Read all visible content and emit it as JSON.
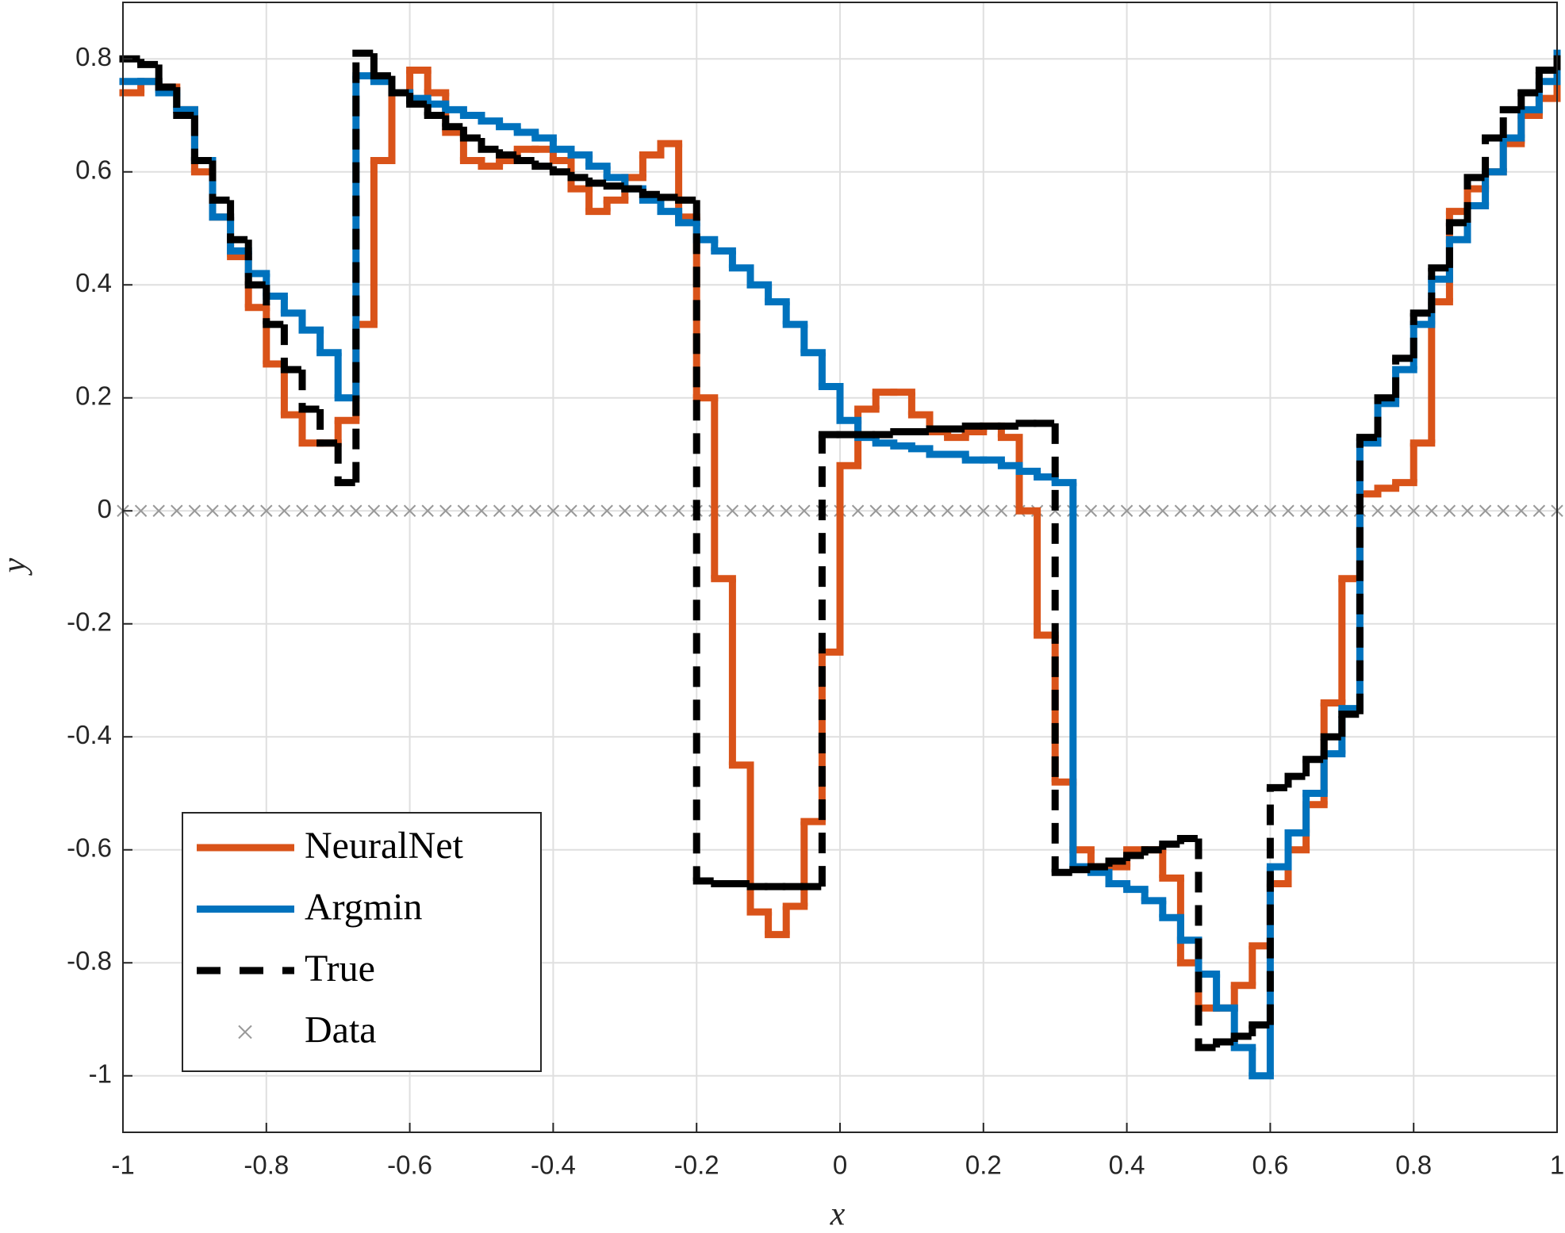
{
  "chart_data": {
    "type": "line",
    "drawstyle": "steps-post",
    "xlabel": "x",
    "ylabel": "y",
    "x": [
      -1,
      -0.975,
      -0.95,
      -0.925,
      -0.9,
      -0.875,
      -0.85,
      -0.825,
      -0.8,
      -0.775,
      -0.75,
      -0.725,
      -0.7,
      -0.675,
      -0.65,
      -0.625,
      -0.6,
      -0.575,
      -0.55,
      -0.525,
      -0.5,
      -0.475,
      -0.45,
      -0.425,
      -0.4,
      -0.375,
      -0.35,
      -0.325,
      -0.3,
      -0.275,
      -0.25,
      -0.225,
      -0.2,
      -0.175,
      -0.15,
      -0.125,
      -0.1,
      -0.075,
      -0.05,
      -0.025,
      0,
      0.025,
      0.05,
      0.075,
      0.1,
      0.125,
      0.15,
      0.175,
      0.2,
      0.225,
      0.25,
      0.275,
      0.3,
      0.325,
      0.35,
      0.375,
      0.4,
      0.425,
      0.45,
      0.475,
      0.5,
      0.525,
      0.55,
      0.575,
      0.6,
      0.625,
      0.65,
      0.675,
      0.7,
      0.725,
      0.75,
      0.775,
      0.8,
      0.825,
      0.85,
      0.875,
      0.9,
      0.925,
      0.95,
      0.975,
      1
    ],
    "series": [
      {
        "name": "NeuralNet",
        "color": "#d95319",
        "style": "solid",
        "values": [
          0.74,
          0.76,
          0.75,
          0.71,
          0.6,
          0.52,
          0.45,
          0.36,
          0.26,
          0.17,
          0.12,
          0.12,
          0.16,
          0.33,
          0.62,
          0.74,
          0.78,
          0.74,
          0.67,
          0.62,
          0.61,
          0.62,
          0.64,
          0.64,
          0.62,
          0.57,
          0.53,
          0.55,
          0.59,
          0.63,
          0.65,
          0.52,
          0.2,
          -0.12,
          -0.45,
          -0.71,
          -0.75,
          -0.7,
          -0.55,
          -0.25,
          0.08,
          0.18,
          0.21,
          0.21,
          0.17,
          0.14,
          0.13,
          0.14,
          0.15,
          0.13,
          0.0,
          -0.22,
          -0.48,
          -0.6,
          -0.63,
          -0.63,
          -0.6,
          -0.6,
          -0.65,
          -0.8,
          -0.88,
          -0.88,
          -0.84,
          -0.77,
          -0.66,
          -0.6,
          -0.52,
          -0.34,
          -0.12,
          0.03,
          0.04,
          0.05,
          0.12,
          0.37,
          0.53,
          0.57,
          0.6,
          0.65,
          0.7,
          0.73,
          0.75
        ]
      },
      {
        "name": "Argmin",
        "color": "#0072bd",
        "style": "solid",
        "values": [
          0.76,
          0.76,
          0.74,
          0.71,
          0.62,
          0.52,
          0.46,
          0.42,
          0.38,
          0.35,
          0.32,
          0.28,
          0.2,
          0.77,
          0.76,
          0.74,
          0.73,
          0.72,
          0.71,
          0.7,
          0.69,
          0.68,
          0.67,
          0.66,
          0.64,
          0.63,
          0.61,
          0.59,
          0.57,
          0.55,
          0.53,
          0.51,
          0.48,
          0.46,
          0.43,
          0.4,
          0.37,
          0.33,
          0.28,
          0.22,
          0.16,
          0.13,
          0.12,
          0.115,
          0.11,
          0.1,
          0.1,
          0.09,
          0.09,
          0.08,
          0.07,
          0.06,
          0.05,
          -0.63,
          -0.64,
          -0.66,
          -0.67,
          -0.69,
          -0.72,
          -0.76,
          -0.82,
          -0.88,
          -0.95,
          -1.0,
          -0.63,
          -0.57,
          -0.5,
          -0.43,
          -0.35,
          0.12,
          0.19,
          0.25,
          0.33,
          0.41,
          0.48,
          0.54,
          0.6,
          0.66,
          0.71,
          0.76,
          0.81
        ]
      },
      {
        "name": "True",
        "color": "#000000",
        "style": "dashed",
        "values": [
          0.8,
          0.79,
          0.75,
          0.7,
          0.62,
          0.55,
          0.48,
          0.4,
          0.33,
          0.25,
          0.18,
          0.12,
          0.05,
          0.81,
          0.77,
          0.74,
          0.72,
          0.7,
          0.68,
          0.66,
          0.64,
          0.63,
          0.62,
          0.61,
          0.6,
          0.59,
          0.58,
          0.575,
          0.57,
          0.56,
          0.555,
          0.55,
          -0.655,
          -0.66,
          -0.66,
          -0.665,
          -0.665,
          -0.665,
          -0.665,
          0.135,
          0.135,
          0.135,
          0.135,
          0.14,
          0.14,
          0.145,
          0.145,
          0.15,
          0.15,
          0.15,
          0.155,
          0.155,
          -0.64,
          -0.635,
          -0.63,
          -0.62,
          -0.61,
          -0.6,
          -0.59,
          -0.58,
          -0.95,
          -0.94,
          -0.93,
          -0.91,
          -0.49,
          -0.47,
          -0.44,
          -0.4,
          -0.36,
          0.13,
          0.2,
          0.27,
          0.35,
          0.43,
          0.51,
          0.59,
          0.66,
          0.71,
          0.74,
          0.78,
          0.8
        ]
      },
      {
        "name": "Data",
        "color": "#999999",
        "style": "marker-x",
        "values": [
          0,
          0,
          0,
          0,
          0,
          0,
          0,
          0,
          0,
          0,
          0,
          0,
          0,
          0,
          0,
          0,
          0,
          0,
          0,
          0,
          0,
          0,
          0,
          0,
          0,
          0,
          0,
          0,
          0,
          0,
          0,
          0,
          0,
          0,
          0,
          0,
          0,
          0,
          0,
          0,
          0,
          0,
          0,
          0,
          0,
          0,
          0,
          0,
          0,
          0,
          0,
          0,
          0,
          0,
          0,
          0,
          0,
          0,
          0,
          0,
          0,
          0,
          0,
          0,
          0,
          0,
          0,
          0,
          0,
          0,
          0,
          0,
          0,
          0,
          0,
          0,
          0,
          0,
          0,
          0,
          0
        ]
      }
    ],
    "xlim": [
      -1,
      1
    ],
    "xticks": [
      -1,
      -0.8,
      -0.6,
      -0.4,
      -0.2,
      0,
      0.2,
      0.4,
      0.6,
      0.8,
      1
    ],
    "ylim": [
      -1.1,
      0.9
    ],
    "yticks": [
      -1,
      -0.8,
      -0.6,
      -0.4,
      -0.2,
      0,
      0.2,
      0.4,
      0.6,
      0.8
    ],
    "grid": true,
    "legend": "southwest"
  }
}
